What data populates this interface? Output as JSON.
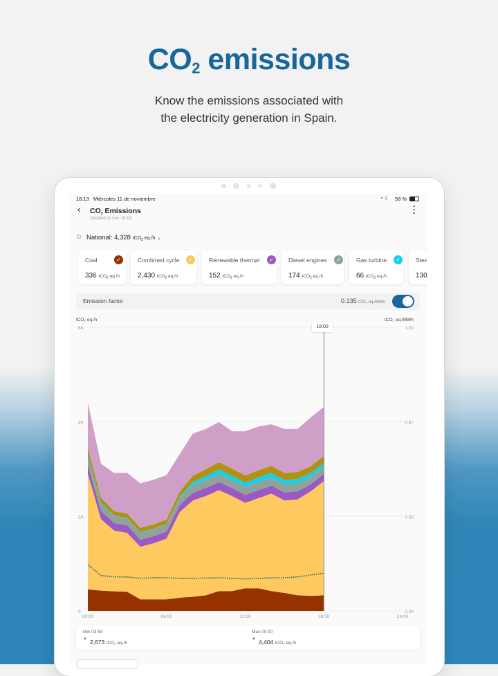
{
  "hero": {
    "title_main": "CO",
    "title_sub": "2",
    "title_rest": " emissions",
    "line1": "Know the emissions associated with",
    "line2": "the electricity generation in Spain."
  },
  "status_bar": {
    "time": "18:13",
    "date": "Miércoles 11 de noviembre",
    "battery": "58 %"
  },
  "header": {
    "title_prefix": "CO",
    "title_sub": "2",
    "title_rest": " Emissions",
    "updated": "Updated 11 nov. 18:10"
  },
  "national": {
    "label": "National:",
    "value": "4,328",
    "unit_prefix": "tCO",
    "unit_sub": "2",
    "unit_rest": " eq./h"
  },
  "cards": [
    {
      "label": "Coal",
      "value": "336",
      "color": "#963200",
      "checked": true
    },
    {
      "label": "Combined cycle",
      "value": "2,430",
      "color": "#fdc95f",
      "checked": true
    },
    {
      "label": "Renewable thermal",
      "value": "152",
      "color": "#9b59c4",
      "checked": true
    },
    {
      "label": "Diesel engines",
      "value": "174",
      "color": "#8fa39b",
      "checked": true
    },
    {
      "label": "Gas turbine",
      "value": "66",
      "color": "#14cfee",
      "checked": true
    },
    {
      "label": "Steam turbine",
      "value": "130",
      "color": "#b09112",
      "checked": true
    }
  ],
  "emission_factor": {
    "label": "Emission factor",
    "value": "0.135",
    "unit": "tCO₂ eq./MWh",
    "toggle_on": true,
    "accent": "#17679c"
  },
  "chart_data": {
    "type": "area",
    "stacked": true,
    "left_axis_label": "tCO₂ eq./h",
    "right_axis_label": "tCO₂ eq./MWh",
    "x": [
      "00:00",
      "01:00",
      "02:00",
      "03:00",
      "04:00",
      "05:00",
      "06:00",
      "07:00",
      "08:00",
      "09:00",
      "10:00",
      "11:00",
      "12:00",
      "13:00",
      "14:00",
      "15:00",
      "16:00",
      "17:00",
      "18:00"
    ],
    "x_ticks": [
      "00:00",
      "06:00",
      "12:00",
      "18:00",
      "24:00"
    ],
    "xlim": [
      "00:00",
      "24:00"
    ],
    "y_ticks": [
      "0",
      "2K",
      "4K",
      "6K"
    ],
    "ylim": [
      0,
      6000
    ],
    "y2_ticks": [
      "0.00",
      "0.33",
      "0.67",
      "1.00"
    ],
    "y2lim": [
      0,
      1
    ],
    "cursor_label": "18:00",
    "grid": true,
    "series": [
      {
        "name": "Coal",
        "color": "#963200",
        "values": [
          455,
          430,
          415,
          405,
          245,
          245,
          245,
          280,
          300,
          330,
          420,
          420,
          480,
          480,
          420,
          380,
          330,
          320,
          330
        ]
      },
      {
        "name": "Combined cycle",
        "color": "#fec95f",
        "values": [
          2445,
          1515,
          1285,
          1245,
          1113,
          1185,
          1285,
          1810,
          2035,
          2100,
          2135,
          2010,
          1805,
          1905,
          2060,
          1955,
          2030,
          2210,
          2420
        ]
      },
      {
        "name": "Renewable thermal",
        "color": "#9b59c4",
        "values": [
          180,
          170,
          160,
          160,
          150,
          150,
          150,
          150,
          160,
          170,
          170,
          170,
          170,
          170,
          170,
          170,
          170,
          150,
          150
        ]
      },
      {
        "name": "Diesel engines",
        "color": "#8fa39b",
        "values": [
          170,
          160,
          150,
          150,
          150,
          150,
          150,
          160,
          170,
          170,
          170,
          170,
          170,
          170,
          170,
          170,
          170,
          160,
          160
        ]
      },
      {
        "name": "Gas turbine",
        "color": "#14cfee",
        "values": [
          40,
          20,
          10,
          10,
          10,
          10,
          10,
          20,
          60,
          80,
          100,
          90,
          90,
          100,
          100,
          90,
          90,
          80,
          70
        ]
      },
      {
        "color": "#b09112",
        "values": [
          150,
          100,
          90,
          90,
          90,
          90,
          90,
          100,
          130,
          150,
          150,
          150,
          150,
          150,
          150,
          150,
          150,
          140,
          150
        ]
      },
      {
        "color": "#cf9fc8",
        "values": [
          964,
          722,
          810,
          860,
          942,
          945,
          943,
          793,
          895,
          850,
          852,
          790,
          935,
          925,
          880,
          935,
          910,
          1035,
          1035
        ]
      }
    ],
    "emission_factor_line": {
      "axis": "right",
      "color": "#1f6b6b",
      "style": "dotted",
      "values": [
        0.163,
        0.125,
        0.12,
        0.12,
        0.115,
        0.117,
        0.117,
        0.115,
        0.115,
        0.116,
        0.117,
        0.115,
        0.113,
        0.115,
        0.117,
        0.117,
        0.12,
        0.127,
        0.133
      ]
    }
  },
  "summary": {
    "min_label": "Min",
    "min_time": "03:50",
    "min_value": "2,673",
    "max_label": "Max",
    "max_time": "00:00",
    "max_value": "4,404",
    "unit": "tCO₂ eq./h",
    "min_color": "#1a9a50",
    "max_color": "#c0392b"
  }
}
